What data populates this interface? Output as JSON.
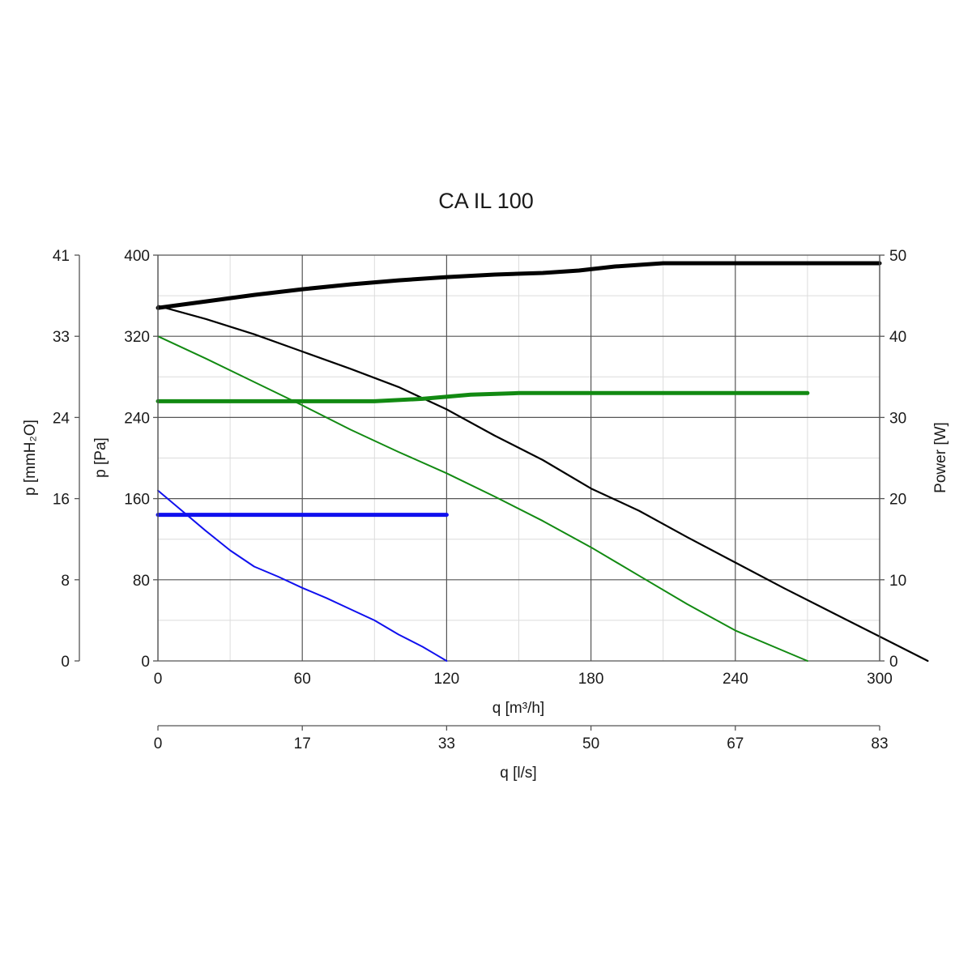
{
  "chart_data": {
    "type": "line",
    "title": "CA IL 100",
    "colors": {
      "black": "#000000",
      "green": "#128a12",
      "blue": "#1010ee"
    },
    "x_axis": {
      "label": "q [m³/h]",
      "range": [
        0,
        300
      ],
      "ticks": [
        0,
        60,
        120,
        180,
        240,
        300
      ],
      "tick_labels": [
        "0",
        "60",
        "120",
        "180",
        "240",
        "300"
      ],
      "minor_step": 30
    },
    "x2_axis": {
      "label": "q [l/s]",
      "tick_labels": [
        "0",
        "17",
        "33",
        "50",
        "67",
        "83"
      ]
    },
    "y_axis": {
      "label": "p [Pa]",
      "range": [
        0,
        400
      ],
      "ticks": [
        0,
        80,
        160,
        240,
        320,
        400
      ],
      "tick_labels": [
        "0",
        "80",
        "160",
        "240",
        "320",
        "400"
      ],
      "minor_step": 40
    },
    "y_outer_axis": {
      "label": "p [mmH₂O]",
      "tick_labels": [
        "0",
        "8",
        "16",
        "24",
        "33",
        "41"
      ]
    },
    "y2_axis": {
      "label": "Power [W]",
      "range": [
        0,
        50
      ],
      "ticks": [
        0,
        10,
        20,
        30,
        40,
        50
      ],
      "tick_labels": [
        "0",
        "10",
        "20",
        "30",
        "40",
        "50"
      ]
    },
    "grid": true,
    "series": [
      {
        "color": "black",
        "axis": "pressure",
        "width": 2.2,
        "points": [
          [
            0,
            350
          ],
          [
            20,
            337
          ],
          [
            40,
            322
          ],
          [
            60,
            305
          ],
          [
            80,
            288
          ],
          [
            100,
            270
          ],
          [
            120,
            248
          ],
          [
            140,
            222
          ],
          [
            160,
            198
          ],
          [
            180,
            170
          ],
          [
            200,
            148
          ],
          [
            220,
            122
          ],
          [
            240,
            97
          ],
          [
            260,
            72
          ],
          [
            280,
            48
          ],
          [
            300,
            24
          ],
          [
            320,
            0
          ]
        ]
      },
      {
        "color": "black",
        "axis": "power",
        "width": 5,
        "points": [
          [
            0,
            43.5
          ],
          [
            20,
            44.3
          ],
          [
            40,
            45.1
          ],
          [
            60,
            45.8
          ],
          [
            80,
            46.4
          ],
          [
            100,
            46.9
          ],
          [
            120,
            47.3
          ],
          [
            140,
            47.6
          ],
          [
            160,
            47.8
          ],
          [
            175,
            48.1
          ],
          [
            190,
            48.6
          ],
          [
            210,
            49.0
          ],
          [
            240,
            49.0
          ],
          [
            270,
            49.0
          ],
          [
            300,
            49.0
          ]
        ]
      },
      {
        "color": "green",
        "axis": "pressure",
        "width": 2,
        "points": [
          [
            0,
            320
          ],
          [
            20,
            298
          ],
          [
            40,
            275
          ],
          [
            60,
            252
          ],
          [
            80,
            228
          ],
          [
            100,
            206
          ],
          [
            120,
            185
          ],
          [
            140,
            162
          ],
          [
            160,
            138
          ],
          [
            180,
            112
          ],
          [
            200,
            84
          ],
          [
            220,
            56
          ],
          [
            240,
            30
          ],
          [
            260,
            10
          ],
          [
            270,
            0
          ]
        ]
      },
      {
        "color": "green",
        "axis": "power",
        "width": 5,
        "points": [
          [
            0,
            32.0
          ],
          [
            30,
            32.0
          ],
          [
            60,
            32.0
          ],
          [
            90,
            32.0
          ],
          [
            110,
            32.3
          ],
          [
            130,
            32.8
          ],
          [
            150,
            33.0
          ],
          [
            180,
            33.0
          ],
          [
            210,
            33.0
          ],
          [
            240,
            33.0
          ],
          [
            270,
            33.0
          ]
        ]
      },
      {
        "color": "blue",
        "axis": "pressure",
        "width": 2,
        "points": [
          [
            0,
            168
          ],
          [
            10,
            148
          ],
          [
            20,
            128
          ],
          [
            30,
            109
          ],
          [
            40,
            93
          ],
          [
            50,
            83
          ],
          [
            60,
            72
          ],
          [
            70,
            62
          ],
          [
            80,
            51
          ],
          [
            90,
            40
          ],
          [
            100,
            26
          ],
          [
            110,
            14
          ],
          [
            115,
            7
          ],
          [
            120,
            0
          ]
        ]
      },
      {
        "color": "blue",
        "axis": "power",
        "width": 5,
        "points": [
          [
            0,
            18.0
          ],
          [
            30,
            18.0
          ],
          [
            60,
            18.0
          ],
          [
            90,
            18.0
          ],
          [
            120,
            18.0
          ]
        ]
      }
    ]
  }
}
